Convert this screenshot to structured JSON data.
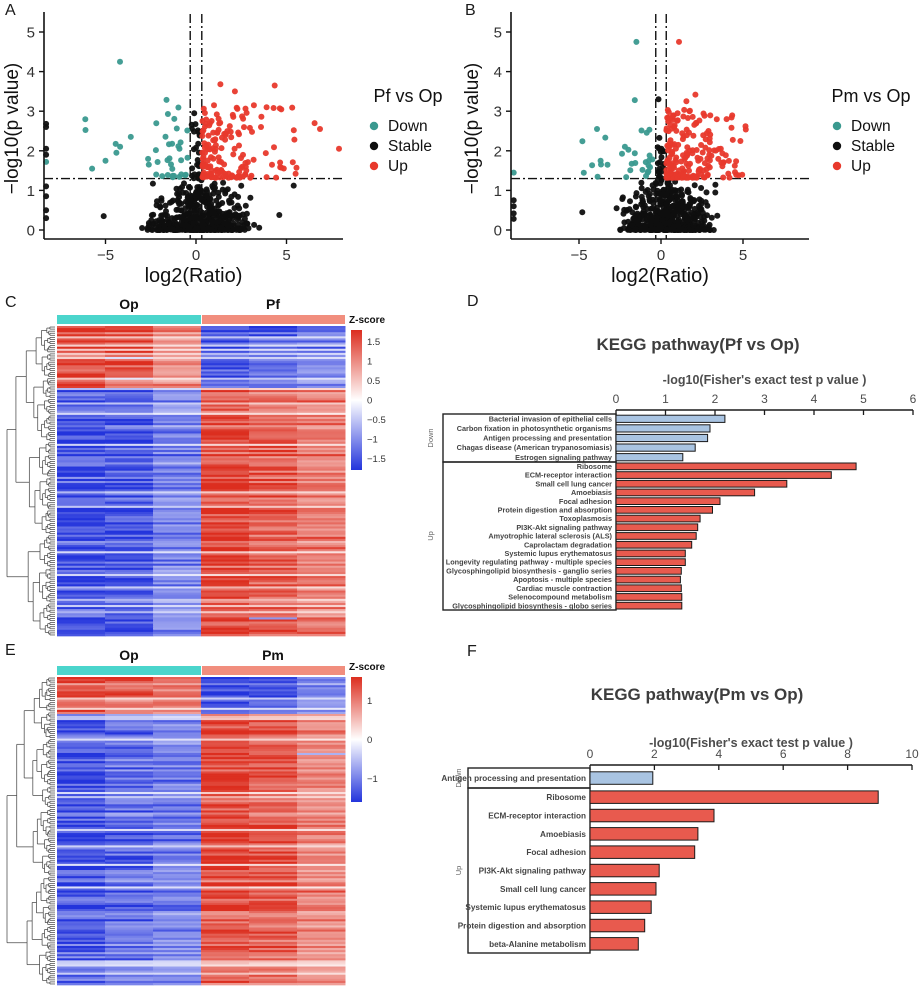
{
  "panels": {
    "A": {
      "label": "A"
    },
    "B": {
      "label": "B"
    },
    "C": {
      "label": "C"
    },
    "D": {
      "label": "D"
    },
    "E": {
      "label": "E"
    },
    "F": {
      "label": "F"
    }
  },
  "colors": {
    "down_teal": "#3a998f",
    "stable_black": "#0f0f0f",
    "up_red": "#e8392c",
    "heat_red": "#dc2e1f",
    "heat_blue": "#2334dc",
    "anno_cyan": "#4bd5cc",
    "anno_salmon": "#f18e7e",
    "bar_blue": "#a9c4e2",
    "bar_red": "#e85a4e",
    "axis_dark": "#1a1a1a",
    "kegg_text": "#4d4d4d"
  },
  "chart_data": [
    {
      "panel": "A",
      "type": "scatter",
      "kind": "volcano",
      "xlabel": "log2(Ratio)",
      "ylabel": "−log10(p value)",
      "xticks": [
        -5,
        0,
        5
      ],
      "yticks": [
        0,
        1,
        2,
        3,
        4,
        5
      ],
      "xlim": [
        -8.4,
        8.1
      ],
      "ylim": [
        0,
        5.3
      ],
      "legend": {
        "title": "Pf vs Op",
        "entries": [
          {
            "label": "Down",
            "color_key": "down_teal"
          },
          {
            "label": "Stable",
            "color_key": "stable_black"
          },
          {
            "label": "Up",
            "color_key": "up_red"
          }
        ]
      },
      "thresholds": {
        "p_line": 1.3,
        "fc_lines": [
          -0.32,
          0.32
        ]
      },
      "groups": {
        "Down": {
          "n": 38,
          "seed": 11,
          "tail_frac": 0.25,
          "x_core": [
            -2.7,
            -0.45
          ],
          "x_tail": [
            -6.4,
            -2.7
          ],
          "y_range": [
            1.33,
            3.3
          ],
          "y_pow": 1.7
        },
        "Stable": {
          "n": 520,
          "seed": 12,
          "x_mu": 0.3,
          "x_sigma": 1.55,
          "x_clip": [
            -7.2,
            5.8
          ],
          "y_max": 1.27,
          "y_pow": 2.6,
          "col_n": 26,
          "col_halfwidth": 0.27,
          "col_y": [
            1.3,
            2.85
          ]
        },
        "Up": {
          "n": 158,
          "seed": 13,
          "tail_frac": 0.14,
          "x_core": [
            0.35,
            2.9
          ],
          "x_tail": [
            2.9,
            5.6
          ],
          "y_range": [
            1.32,
            3.2
          ],
          "y_pow": 1.9
        }
      },
      "notable_points": [
        {
          "x": -4.2,
          "y": 4.25,
          "g": "Down"
        },
        {
          "x": 1.35,
          "y": 3.68,
          "g": "Up"
        },
        {
          "x": 4.35,
          "y": 3.65,
          "g": "Up"
        },
        {
          "x": 2.15,
          "y": 3.5,
          "g": "Up"
        },
        {
          "x": -0.1,
          "y": 2.95,
          "g": "Stable"
        },
        {
          "x": 3.2,
          "y": 3.15,
          "g": "Up"
        },
        {
          "x": 3.9,
          "y": 3.1,
          "g": "Up"
        },
        {
          "x": 6.55,
          "y": 2.7,
          "g": "Up"
        },
        {
          "x": 6.85,
          "y": 2.55,
          "g": "Up"
        },
        {
          "x": 7.9,
          "y": 2.05,
          "g": "Up"
        },
        {
          "x": 5.5,
          "y": 1.42,
          "g": "Up"
        },
        {
          "x": 4.2,
          "y": 1.65,
          "g": "Up"
        },
        {
          "x": -5.0,
          "y": 1.75,
          "g": "Down"
        },
        {
          "x": -4.4,
          "y": 1.95,
          "g": "Down"
        },
        {
          "x": -3.6,
          "y": 2.35,
          "g": "Down"
        },
        {
          "x": -5.1,
          "y": 0.35,
          "g": "Stable"
        },
        {
          "x": 5.4,
          "y": 1.12,
          "g": "Stable"
        },
        {
          "x": 4.6,
          "y": 0.38,
          "g": "Stable"
        }
      ],
      "edge_points": [
        {
          "y": 2.68,
          "g": "Stable"
        },
        {
          "y": 2.6,
          "g": "Stable"
        },
        {
          "y": 2.05,
          "g": "Stable"
        },
        {
          "y": 1.9,
          "g": "Stable"
        },
        {
          "y": 1.72,
          "g": "Down"
        },
        {
          "y": 1.1,
          "g": "Stable"
        },
        {
          "y": 0.85,
          "g": "Stable"
        },
        {
          "y": 0.5,
          "g": "Stable"
        },
        {
          "y": 0.3,
          "g": "Stable"
        }
      ]
    },
    {
      "panel": "B",
      "type": "scatter",
      "kind": "volcano",
      "xlabel": "log2(Ratio)",
      "ylabel": "−log10(p value)",
      "xticks": [
        -5,
        0,
        5
      ],
      "yticks": [
        0,
        1,
        2,
        3,
        4,
        5
      ],
      "xlim": [
        -9.1,
        9.0
      ],
      "ylim": [
        0,
        5.3
      ],
      "legend": {
        "title": "Pm vs Op",
        "entries": [
          {
            "label": "Down",
            "color_key": "down_teal"
          },
          {
            "label": "Stable",
            "color_key": "stable_black"
          },
          {
            "label": "Up",
            "color_key": "up_red"
          }
        ]
      },
      "thresholds": {
        "p_line": 1.3,
        "fc_lines": [
          -0.32,
          0.32
        ]
      },
      "groups": {
        "Down": {
          "n": 28,
          "seed": 21,
          "tail_frac": 0.3,
          "x_core": [
            -2.6,
            -0.5
          ],
          "x_tail": [
            -5.0,
            -2.6
          ],
          "y_range": [
            1.33,
            2.75
          ],
          "y_pow": 1.6
        },
        "Stable": {
          "n": 560,
          "seed": 22,
          "x_mu": 0.35,
          "x_sigma": 1.5,
          "x_clip": [
            -6.8,
            6.0
          ],
          "y_max": 1.27,
          "y_pow": 2.6,
          "col_n": 20,
          "col_halfwidth": 0.22,
          "col_y": [
            1.3,
            2.6
          ]
        },
        "Up": {
          "n": 195,
          "seed": 23,
          "tail_frac": 0.1,
          "x_core": [
            0.33,
            3.1
          ],
          "x_tail": [
            3.1,
            5.2
          ],
          "y_range": [
            1.32,
            3.05
          ],
          "y_pow": 2.0
        }
      },
      "notable_points": [
        {
          "x": -1.5,
          "y": 4.75,
          "g": "Down"
        },
        {
          "x": 1.1,
          "y": 4.75,
          "g": "Up"
        },
        {
          "x": -0.15,
          "y": 3.3,
          "g": "Stable"
        },
        {
          "x": 2.1,
          "y": 3.42,
          "g": "Up"
        },
        {
          "x": -1.6,
          "y": 3.28,
          "g": "Down"
        },
        {
          "x": 1.55,
          "y": 3.25,
          "g": "Up"
        },
        {
          "x": 4.0,
          "y": 2.8,
          "g": "Up"
        },
        {
          "x": 5.15,
          "y": 2.62,
          "g": "Up"
        },
        {
          "x": 4.3,
          "y": 2.58,
          "g": "Up"
        },
        {
          "x": -3.9,
          "y": 2.55,
          "g": "Down"
        },
        {
          "x": -4.8,
          "y": 0.45,
          "g": "Stable"
        },
        {
          "x": 4.5,
          "y": 1.62,
          "g": "Up"
        },
        {
          "x": 3.8,
          "y": 1.7,
          "g": "Up"
        },
        {
          "x": -2.2,
          "y": 2.1,
          "g": "Down"
        }
      ],
      "edge_points": [
        {
          "y": 1.45,
          "g": "Down"
        },
        {
          "y": 0.75,
          "g": "Stable"
        },
        {
          "y": 0.6,
          "g": "Stable"
        },
        {
          "y": 0.42,
          "g": "Stable"
        },
        {
          "y": 0.28,
          "g": "Stable"
        }
      ]
    },
    {
      "panel": "C",
      "type": "heatmap",
      "col_groups": [
        {
          "label": "Op",
          "color_key": "anno_cyan",
          "cols": 3
        },
        {
          "label": "Pf",
          "color_key": "anno_salmon",
          "cols": 3
        }
      ],
      "n_rows": 150,
      "top_block_fraction": 0.2,
      "seed": 31,
      "pattern": "top block: Op high / Pf low; remaining rows: Op low / Pf high",
      "col_strength": [
        1.0,
        0.95,
        0.65,
        1.0,
        0.85,
        0.7
      ],
      "colorbar": {
        "title": "Z-score",
        "ticks": [
          1.5,
          1,
          0.5,
          0,
          -0.5,
          -1,
          -1.5
        ],
        "range": [
          1.8,
          -1.8
        ]
      }
    },
    {
      "panel": "D",
      "type": "bar",
      "title": "KEGG pathway(Pf vs Op)",
      "xlabel": "-log10(Fisher's exact test p value )",
      "xlim": [
        0,
        6
      ],
      "xticks": [
        0,
        1,
        2,
        3,
        4,
        5,
        6
      ],
      "group_labels": [
        "Down",
        "Up"
      ],
      "series": [
        {
          "name": "Bacterial invasion of epithelial cells",
          "value": 2.2,
          "group": "Down"
        },
        {
          "name": "Carbon fixation in photosynthetic organisms",
          "value": 1.9,
          "group": "Down"
        },
        {
          "name": "Antigen processing and presentation",
          "value": 1.85,
          "group": "Down"
        },
        {
          "name": "Chagas disease (American trypanosomiasis)",
          "value": 1.6,
          "group": "Down"
        },
        {
          "name": "Estrogen signaling pathway",
          "value": 1.35,
          "group": "Down"
        },
        {
          "name": "Ribosome",
          "value": 4.85,
          "group": "Up"
        },
        {
          "name": "ECM-receptor interaction",
          "value": 4.35,
          "group": "Up"
        },
        {
          "name": "Small cell lung cancer",
          "value": 3.45,
          "group": "Up"
        },
        {
          "name": "Amoebiasis",
          "value": 2.8,
          "group": "Up"
        },
        {
          "name": "Focal adhesion",
          "value": 2.1,
          "group": "Up"
        },
        {
          "name": "Protein digestion and absorption",
          "value": 1.95,
          "group": "Up"
        },
        {
          "name": "Toxoplasmosis",
          "value": 1.7,
          "group": "Up"
        },
        {
          "name": "PI3K-Akt signaling pathway",
          "value": 1.65,
          "group": "Up"
        },
        {
          "name": "Amyotrophic lateral sclerosis (ALS)",
          "value": 1.62,
          "group": "Up"
        },
        {
          "name": "Caprolactam degradation",
          "value": 1.53,
          "group": "Up"
        },
        {
          "name": "Systemic lupus erythematosus",
          "value": 1.4,
          "group": "Up"
        },
        {
          "name": "Longevity regulating pathway - multiple species",
          "value": 1.4,
          "group": "Up"
        },
        {
          "name": "Glycosphingolipid biosynthesis - ganglio series",
          "value": 1.32,
          "group": "Up"
        },
        {
          "name": "Apoptosis - multiple species",
          "value": 1.3,
          "group": "Up"
        },
        {
          "name": "Cardiac muscle contraction",
          "value": 1.32,
          "group": "Up"
        },
        {
          "name": "Selenocompound metabolism",
          "value": 1.33,
          "group": "Up"
        },
        {
          "name": "Glycosphingolipid biosynthesis - globo series",
          "value": 1.33,
          "group": "Up"
        }
      ]
    },
    {
      "panel": "E",
      "type": "heatmap",
      "col_groups": [
        {
          "label": "Op",
          "color_key": "anno_cyan",
          "cols": 3
        },
        {
          "label": "Pm",
          "color_key": "anno_salmon",
          "cols": 3
        }
      ],
      "n_rows": 150,
      "top_block_fraction": 0.12,
      "seed": 41,
      "pattern": "top block: Op high / Pm low; remaining rows: Op low / Pm high",
      "col_strength": [
        0.95,
        0.8,
        0.7,
        1.0,
        0.9,
        0.65
      ],
      "colorbar": {
        "title": "Z-score",
        "ticks": [
          1,
          0,
          -1
        ],
        "range": [
          1.6,
          -1.6
        ]
      }
    },
    {
      "panel": "F",
      "type": "bar",
      "title": "KEGG pathway(Pm vs Op)",
      "xlabel": "-log10(Fisher's exact test p value )",
      "xlim": [
        0,
        10
      ],
      "xticks": [
        0,
        2,
        4,
        6,
        8,
        10
      ],
      "group_labels": [
        "Down",
        "Up"
      ],
      "series": [
        {
          "name": "Antigen processing and presentation",
          "value": 1.95,
          "group": "Down"
        },
        {
          "name": "Ribosome",
          "value": 8.95,
          "group": "Up"
        },
        {
          "name": "ECM-receptor interaction",
          "value": 3.85,
          "group": "Up"
        },
        {
          "name": "Amoebiasis",
          "value": 3.35,
          "group": "Up"
        },
        {
          "name": "Focal adhesion",
          "value": 3.25,
          "group": "Up"
        },
        {
          "name": "PI3K-Akt signaling pathway",
          "value": 2.15,
          "group": "Up"
        },
        {
          "name": "Small cell lung cancer",
          "value": 2.05,
          "group": "Up"
        },
        {
          "name": "Systemic lupus erythematosus",
          "value": 1.9,
          "group": "Up"
        },
        {
          "name": "Protein digestion and absorption",
          "value": 1.7,
          "group": "Up"
        },
        {
          "name": "beta-Alanine metabolism",
          "value": 1.5,
          "group": "Up"
        }
      ]
    }
  ]
}
